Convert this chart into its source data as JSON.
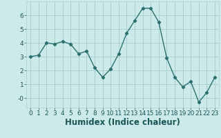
{
  "x": [
    0,
    1,
    2,
    3,
    4,
    5,
    6,
    7,
    8,
    9,
    10,
    11,
    12,
    13,
    14,
    15,
    16,
    17,
    18,
    19,
    20,
    21,
    22,
    23
  ],
  "y": [
    3.0,
    3.1,
    4.0,
    3.9,
    4.1,
    3.9,
    3.2,
    3.4,
    2.2,
    1.5,
    2.1,
    3.2,
    4.7,
    5.6,
    6.5,
    6.5,
    5.5,
    2.9,
    1.5,
    0.8,
    1.2,
    -0.3,
    0.4,
    1.5
  ],
  "line_color": "#2d7070",
  "marker": "D",
  "marker_size": 2.2,
  "bg_color": "#cceaea",
  "grid_color": "#aacece",
  "xlabel": "Humidex (Indice chaleur)",
  "xlim": [
    -0.5,
    23.5
  ],
  "ylim": [
    -0.7,
    7.0
  ],
  "xticks": [
    0,
    1,
    2,
    3,
    4,
    5,
    6,
    7,
    8,
    9,
    10,
    11,
    12,
    13,
    14,
    15,
    16,
    17,
    18,
    19,
    20,
    21,
    22,
    23
  ],
  "yticks": [
    0,
    1,
    2,
    3,
    4,
    5,
    6
  ],
  "ytick_labels": [
    "-0",
    "1",
    "2",
    "3",
    "4",
    "5",
    "6"
  ],
  "font_color": "#1a5555",
  "tick_fontsize": 6.5,
  "label_fontsize": 8.5
}
